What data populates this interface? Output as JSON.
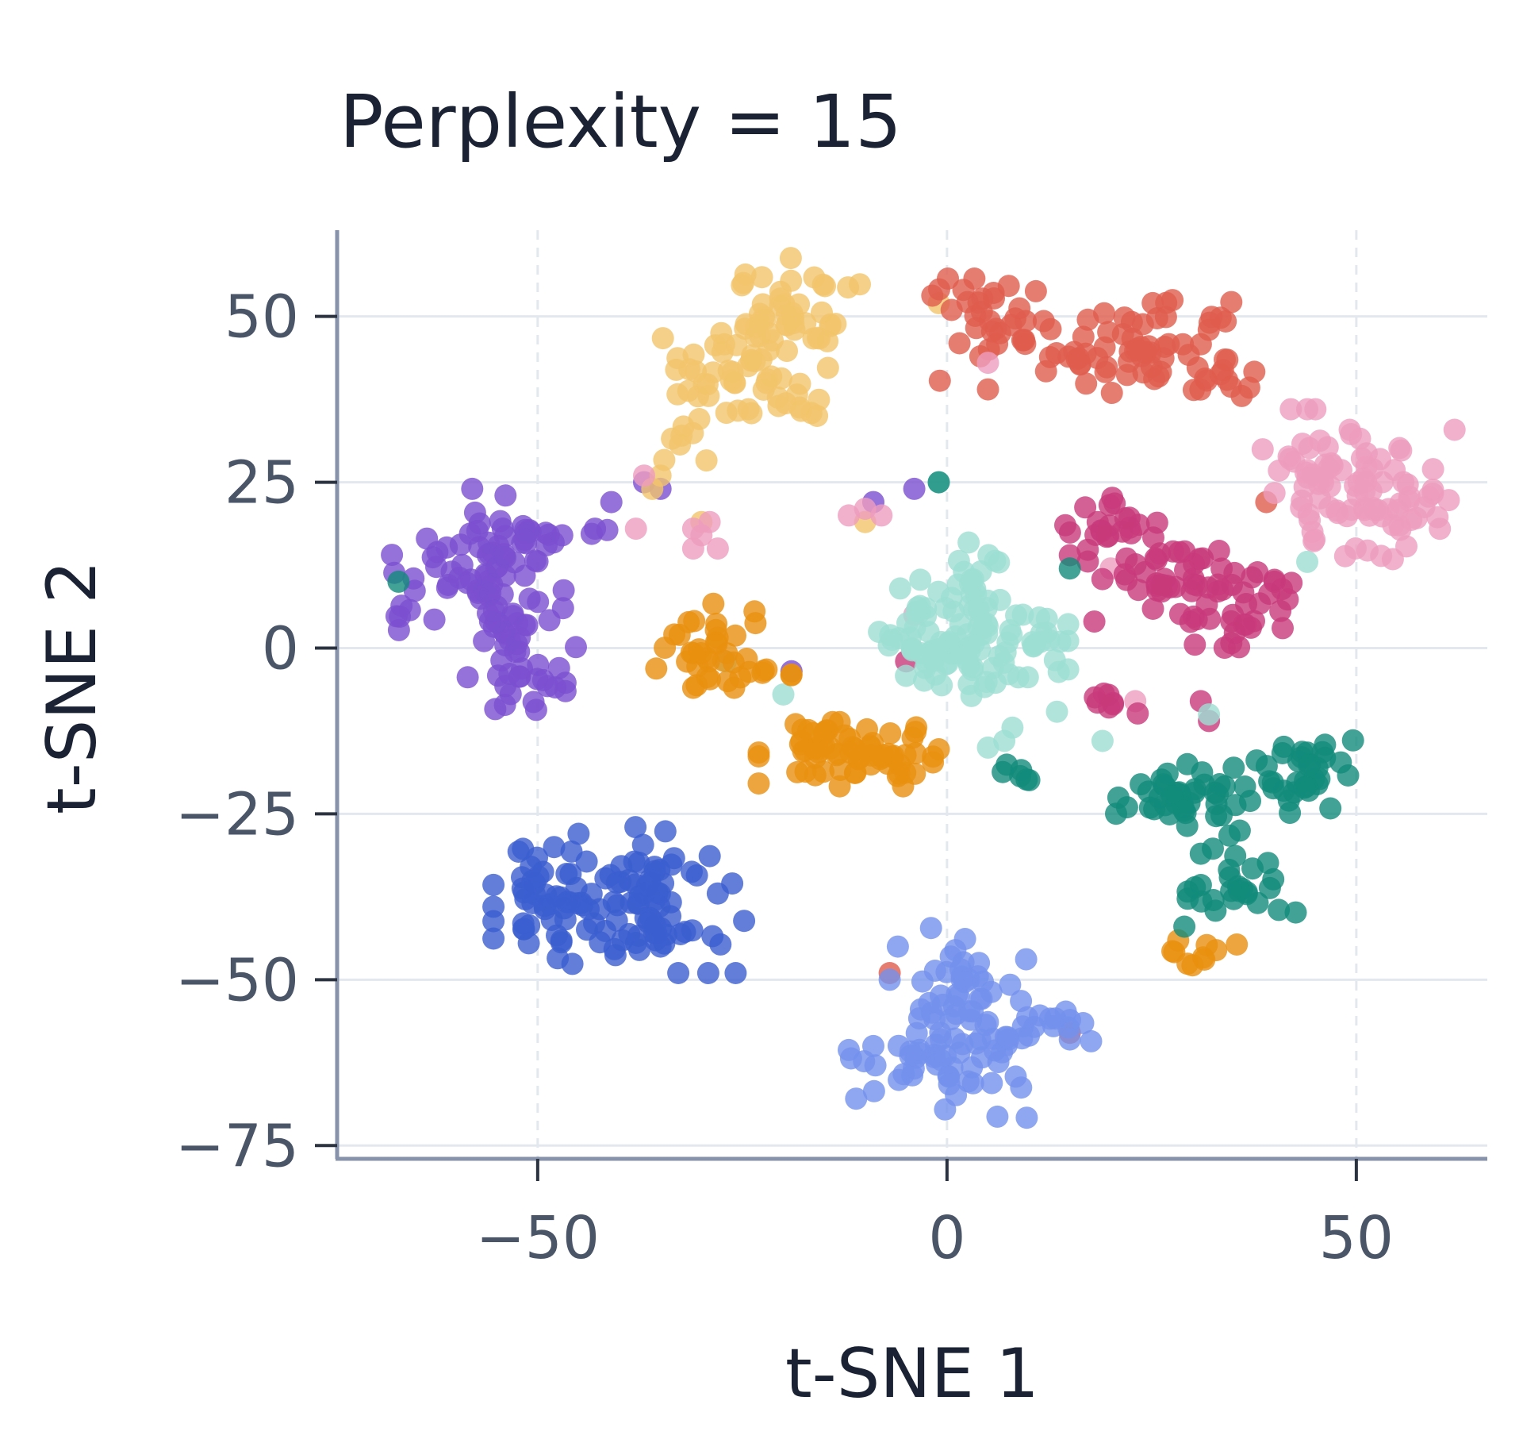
{
  "chart_data": {
    "type": "scatter",
    "title": "Perplexity = 15",
    "xlabel": "t-SNE 1",
    "ylabel": "t-SNE 2",
    "xlim": [
      -74.5,
      66
    ],
    "ylim": [
      -77,
      63
    ],
    "x_ticks": [
      -50,
      0,
      50
    ],
    "y_ticks": [
      50,
      25,
      0,
      -25,
      -50,
      -75
    ],
    "x_tick_labels": [
      "−50",
      "0",
      "50"
    ],
    "y_tick_labels": [
      "50",
      "25",
      "0",
      "−25",
      "−50",
      "−75"
    ],
    "grid": true,
    "legend": "none",
    "point_opacity": 0.8,
    "series": [
      {
        "color": "#7B4FD0",
        "clusters": [
          {
            "center": [
              -57,
              12
            ],
            "spread": [
              5,
              5
            ],
            "n": 60
          },
          {
            "center": [
              -53,
              0
            ],
            "spread": [
              3.5,
              5
            ],
            "n": 35
          },
          {
            "center": [
              -51,
              -5
            ],
            "spread": [
              2,
              1.5
            ],
            "n": 12
          },
          {
            "center": [
              -67,
              4
            ],
            "spread": [
              1,
              1.2
            ],
            "n": 5
          },
          {
            "center": [
              -45,
              17
            ],
            "spread": [
              3,
              1
            ],
            "n": 8
          }
        ],
        "points": [
          [
            -58,
            24
          ],
          [
            -41,
            22
          ],
          [
            -35,
            24
          ],
          [
            -37,
            25
          ],
          [
            -4,
            24
          ],
          [
            -9,
            22
          ],
          [
            -19,
            -3.5
          ],
          [
            -47,
            17
          ],
          [
            -43,
            18
          ]
        ]
      },
      {
        "color": "#F2C46B",
        "clusters": [
          {
            "center": [
              -19,
              50
            ],
            "spread": [
              4,
              4
            ],
            "n": 50
          },
          {
            "center": [
              -27,
              41
            ],
            "spread": [
              3.5,
              3
            ],
            "n": 30
          },
          {
            "center": [
              -20,
              37
            ],
            "spread": [
              2.5,
              2.5
            ],
            "n": 15
          },
          {
            "center": [
              -32,
              31
            ],
            "spread": [
              2,
              2
            ],
            "n": 8
          }
        ],
        "points": [
          [
            -35,
            26
          ],
          [
            -36,
            24
          ],
          [
            -1,
            52
          ],
          [
            -30,
            19
          ],
          [
            -10,
            19
          ]
        ]
      },
      {
        "color": "#E05D4E",
        "clusters": [
          {
            "center": [
              7,
              48
            ],
            "spread": [
              4,
              3.5
            ],
            "n": 35
          },
          {
            "center": [
              18,
              44
            ],
            "spread": [
              4,
              3
            ],
            "n": 25
          },
          {
            "center": [
              26,
              46
            ],
            "spread": [
              4,
              3
            ],
            "n": 35
          },
          {
            "center": [
              33,
              41
            ],
            "spread": [
              2.5,
              1.5
            ],
            "n": 10
          }
        ],
        "points": [
          [
            2,
            54
          ],
          [
            5,
            39
          ],
          [
            36,
            38
          ],
          [
            -7,
            -49
          ],
          [
            15,
            -58
          ],
          [
            39,
            22
          ]
        ]
      },
      {
        "color": "#ED9CBE",
        "clusters": [
          {
            "center": [
              51,
              23
            ],
            "spread": [
              5,
              4.5
            ],
            "n": 80
          },
          {
            "center": [
              43,
              29
            ],
            "spread": [
              2.5,
              2
            ],
            "n": 10
          }
        ],
        "points": [
          [
            42,
            36
          ],
          [
            44,
            36
          ],
          [
            45,
            36
          ],
          [
            -30,
            17
          ],
          [
            -29,
            19
          ],
          [
            -31,
            15
          ],
          [
            -12,
            20
          ],
          [
            -10,
            21
          ],
          [
            -38,
            18
          ],
          [
            -37,
            26
          ],
          [
            5,
            43
          ],
          [
            -4,
            5
          ],
          [
            20,
            12
          ],
          [
            23,
            -8
          ],
          [
            -31,
            18
          ],
          [
            -28,
            15
          ],
          [
            -8,
            20
          ]
        ]
      },
      {
        "color": "#C8397A",
        "clusters": [
          {
            "center": [
              21,
              17
            ],
            "spread": [
              3,
              3
            ],
            "n": 25
          },
          {
            "center": [
              27,
              11
            ],
            "spread": [
              3,
              3
            ],
            "n": 25
          },
          {
            "center": [
              34,
              7
            ],
            "spread": [
              4,
              4
            ],
            "n": 40
          },
          {
            "center": [
              20,
              -8
            ],
            "spread": [
              1.5,
              1
            ],
            "n": 8
          }
        ],
        "points": [
          [
            18,
            4
          ],
          [
            15,
            14
          ],
          [
            40,
            10
          ],
          [
            41,
            3
          ],
          [
            -5,
            -2
          ],
          [
            31,
            -8
          ],
          [
            32,
            -11
          ]
        ]
      },
      {
        "color": "#9EDED3",
        "clusters": [
          {
            "center": [
              3,
              7
            ],
            "spread": [
              4,
              5
            ],
            "n": 45
          },
          {
            "center": [
              -3,
              1
            ],
            "spread": [
              4,
              3.5
            ],
            "n": 35
          },
          {
            "center": [
              6,
              -3
            ],
            "spread": [
              4,
              3
            ],
            "n": 25
          },
          {
            "center": [
              10,
              0
            ],
            "spread": [
              3,
              2
            ],
            "n": 12
          }
        ],
        "points": [
          [
            8,
            -12
          ],
          [
            7,
            -14
          ],
          [
            5,
            -15
          ],
          [
            19,
            -14
          ],
          [
            -1,
            25
          ],
          [
            -27,
            -2
          ],
          [
            -20,
            -7
          ],
          [
            32,
            -10
          ],
          [
            44,
            13
          ]
        ]
      },
      {
        "color": "#E8900F",
        "clusters": [
          {
            "center": [
              -30,
              1
            ],
            "spread": [
              3,
              3
            ],
            "n": 30
          },
          {
            "center": [
              -12,
              -16
            ],
            "spread": [
              5,
              2.2
            ],
            "n": 70
          },
          {
            "center": [
              31,
              -46
            ],
            "spread": [
              2,
              1.2
            ],
            "n": 10
          },
          {
            "center": [
              -23,
              -4
            ],
            "spread": [
              2.5,
              1.5
            ],
            "n": 7
          }
        ],
        "points": [
          [
            -31,
            -6
          ],
          [
            -19,
            -4
          ],
          [
            -26,
            -6
          ]
        ]
      },
      {
        "color": "#118B7A",
        "clusters": [
          {
            "center": [
              29,
              -23
            ],
            "spread": [
              4,
              2.5
            ],
            "n": 40
          },
          {
            "center": [
              43,
              -19
            ],
            "spread": [
              3,
              3
            ],
            "n": 35
          },
          {
            "center": [
              36,
              -35
            ],
            "spread": [
              3,
              3
            ],
            "n": 25
          },
          {
            "center": [
              9,
              -19
            ],
            "spread": [
              1.2,
              0.8
            ],
            "n": 6
          }
        ],
        "points": [
          [
            -67,
            10
          ],
          [
            15,
            12
          ],
          [
            29,
            -42
          ],
          [
            22,
            -24
          ],
          [
            -1,
            25
          ],
          [
            31,
            -31
          ]
        ]
      },
      {
        "color": "#3B5ECF",
        "clusters": [
          {
            "center": [
              -40,
              -38
            ],
            "spread": [
              7,
              5
            ],
            "n": 120
          }
        ],
        "points": [
          [
            -45,
            -28
          ],
          [
            -48,
            -30
          ],
          [
            -35,
            -45
          ],
          [
            -28,
            -37
          ]
        ]
      },
      {
        "color": "#7391EC",
        "clusters": [
          {
            "center": [
              3,
              -51
            ],
            "spread": [
              3.5,
              4
            ],
            "n": 40
          },
          {
            "center": [
              -1,
              -62
            ],
            "spread": [
              5,
              4
            ],
            "n": 50
          },
          {
            "center": [
              11,
              -57
            ],
            "spread": [
              3,
              2
            ],
            "n": 15
          }
        ],
        "points": [
          [
            -9,
            -60
          ],
          [
            -7,
            -50
          ],
          [
            15,
            -59
          ],
          [
            13,
            -57
          ],
          [
            -6,
            -45
          ]
        ]
      }
    ]
  }
}
